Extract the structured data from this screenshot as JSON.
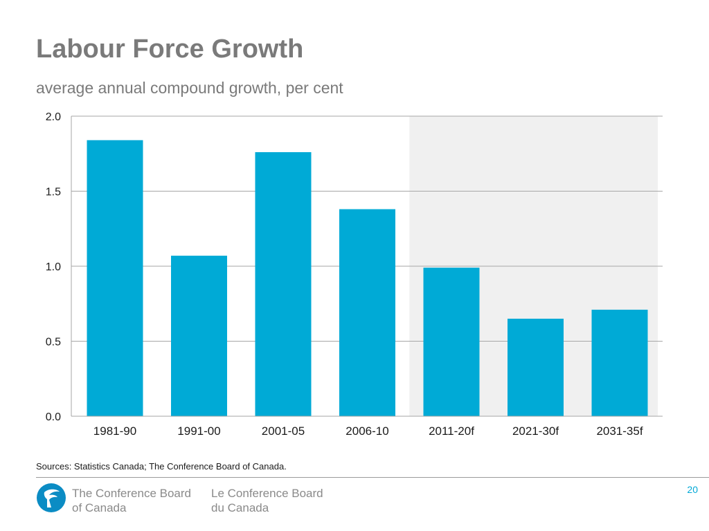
{
  "slide": {
    "title": "Labour Force Growth",
    "subtitle": "average annual compound growth, per cent",
    "source": "Sources: Statistics Canada; The Conference Board of Canada.",
    "page_number": "20"
  },
  "footer": {
    "org_en_line1": "The Conference Board",
    "org_en_line2": "of Canada",
    "org_fr_line1": "Le Conference Board",
    "org_fr_line2": "du Canada"
  },
  "colors": {
    "bar": "#00aad6",
    "forecast_shade": "#f0f0f0",
    "grid": "#a6a6a6",
    "title": "#7a7a7a",
    "brand": "#00a8d6"
  },
  "chart_data": {
    "type": "bar",
    "title": "Labour Force Growth",
    "subtitle": "average annual compound growth, per cent",
    "xlabel": "",
    "ylabel": "",
    "categories": [
      "1981-90",
      "1991-00",
      "2001-05",
      "2006-10",
      "2011-20f",
      "2021-30f",
      "2031-35f"
    ],
    "values": [
      1.84,
      1.07,
      1.76,
      1.38,
      0.99,
      0.65,
      0.71
    ],
    "ylim": [
      0,
      2.0
    ],
    "yticks": [
      0.0,
      0.5,
      1.0,
      1.5,
      2.0
    ],
    "ytick_labels": [
      "0.0",
      "0.5",
      "1.0",
      "1.5",
      "2.0"
    ],
    "grid": true,
    "forecast_categories": [
      "2011-20f",
      "2021-30f",
      "2031-35f"
    ]
  }
}
